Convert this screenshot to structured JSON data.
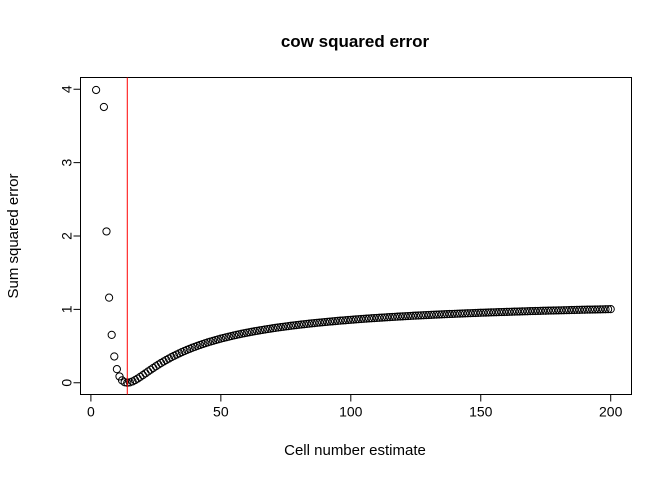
{
  "chart_data": {
    "type": "scatter",
    "title": "cow squared error",
    "xlabel": "Cell number estimate",
    "ylabel": "Sum squared error",
    "xlim": [
      -4,
      208
    ],
    "ylim": [
      -0.16,
      4.16
    ],
    "xticks": [
      0,
      50,
      100,
      150,
      200
    ],
    "yticks": [
      0,
      1,
      2,
      3,
      4
    ],
    "xtick_labels": [
      "0",
      "50",
      "100",
      "150",
      "200"
    ],
    "ytick_labels": [
      "0",
      "1",
      "2",
      "3",
      "4"
    ],
    "grid": false,
    "legend": "none",
    "point_color": "#000000",
    "vline": {
      "x": 14,
      "color": "#ff0000"
    },
    "model": {
      "k": 14,
      "ymax_fit": 1.16,
      "y_at_2": 3.99
    },
    "x": [
      2,
      3,
      4,
      5,
      6,
      7,
      8,
      9,
      10,
      11,
      12,
      13,
      14,
      15,
      16,
      17,
      18,
      19,
      20,
      21,
      22,
      23,
      24,
      25,
      26,
      27,
      28,
      29,
      30,
      31,
      32,
      33,
      34,
      35,
      36,
      37,
      38,
      39,
      40,
      41,
      42,
      43,
      44,
      45,
      46,
      47,
      48,
      49,
      50,
      51,
      52,
      53,
      54,
      55,
      56,
      57,
      58,
      59,
      60,
      61,
      62,
      63,
      64,
      65,
      66,
      67,
      68,
      69,
      70,
      71,
      72,
      73,
      74,
      75,
      76,
      77,
      78,
      79,
      80,
      81,
      82,
      83,
      84,
      85,
      86,
      87,
      88,
      89,
      90,
      91,
      92,
      93,
      94,
      95,
      96,
      97,
      98,
      99,
      100,
      101,
      102,
      103,
      104,
      105,
      106,
      107,
      108,
      109,
      110,
      111,
      112,
      113,
      114,
      115,
      116,
      117,
      118,
      119,
      120,
      121,
      122,
      123,
      124,
      125,
      126,
      127,
      128,
      129,
      130,
      131,
      132,
      133,
      134,
      135,
      136,
      137,
      138,
      139,
      140,
      141,
      142,
      143,
      144,
      145,
      146,
      147,
      148,
      149,
      150,
      151,
      152,
      153,
      154,
      155,
      156,
      157,
      158,
      159,
      160,
      161,
      162,
      163,
      164,
      165,
      166,
      167,
      168,
      169,
      170,
      171,
      172,
      173,
      174,
      175,
      176,
      177,
      178,
      179,
      180,
      181,
      182,
      183,
      184,
      185,
      186,
      187,
      188,
      189,
      190,
      191,
      192,
      193,
      194,
      195,
      196,
      197,
      198,
      199,
      200
    ]
  }
}
